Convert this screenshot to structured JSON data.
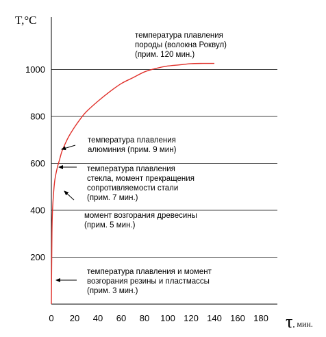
{
  "chart_data": {
    "type": "line",
    "ylabel": "T,°C",
    "xlabel_symbol": "τ",
    "xlabel_unit": ", мин.",
    "xlim": [
      0,
      190
    ],
    "ylim": [
      0,
      1200
    ],
    "x_ticks": [
      0,
      20,
      40,
      60,
      80,
      100,
      120,
      140,
      160,
      180
    ],
    "y_ticks": [
      200,
      400,
      600,
      800,
      1000
    ],
    "grid": "horizontal",
    "series": [
      {
        "color": "#e0302a",
        "x": [
          0,
          0.5,
          1,
          2,
          3,
          5,
          7,
          9,
          12,
          15,
          20,
          25,
          30,
          40,
          50,
          60,
          70,
          80,
          90,
          100,
          110,
          120,
          130,
          140
        ],
        "y": [
          0,
          300,
          400,
          480,
          530,
          580,
          615,
          650,
          685,
          715,
          755,
          790,
          820,
          865,
          905,
          940,
          965,
          990,
          1005,
          1015,
          1020,
          1025,
          1026,
          1026
        ]
      }
    ],
    "annotations": [
      {
        "lines": [
          "температура плавления",
          "породы (волокна Роквул)",
          "(прим. 120 мин.)"
        ]
      },
      {
        "lines": [
          "температура плавления",
          "алюминия (прим. 9 мин)"
        ]
      },
      {
        "lines": [
          "температура плавления",
          "стекла, момент прекращения",
          "сопротивляемости стали",
          "(прим. 7 мин.)"
        ]
      },
      {
        "lines": [
          "момент возгорания древесины",
          "(прим. 5 мин.)"
        ]
      },
      {
        "lines": [
          "температура плавления и момент",
          "возгорания резины и пластмассы",
          "(прим. 3 мин.)"
        ]
      }
    ]
  }
}
